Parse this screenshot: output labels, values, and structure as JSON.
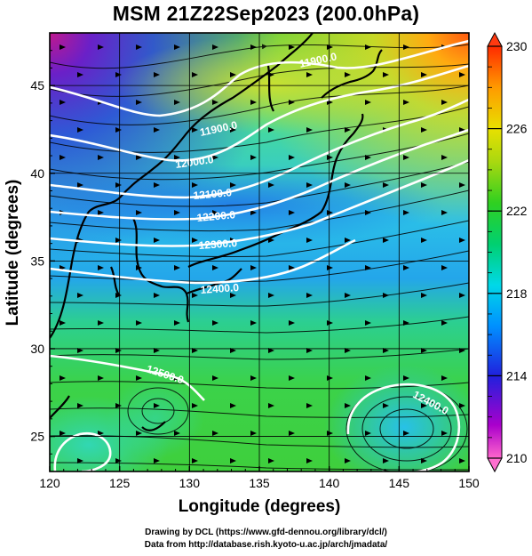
{
  "title": "MSM 21Z22Sep2023 (200.0hPa)",
  "map": {
    "xlabel": "Longitude (degrees)",
    "ylabel": "Latitude  (degrees)",
    "lon_range": [
      120,
      150
    ],
    "lat_range": [
      23,
      48
    ],
    "lon_ticks": [
      "120",
      "125",
      "130",
      "135",
      "140",
      "145",
      "150"
    ],
    "lat_ticks": [
      "25",
      "30",
      "35",
      "40",
      "45"
    ],
    "grid": true,
    "contour_labels": [
      "11900.0",
      "12000.0",
      "12100.0",
      "12200.0",
      "12300.0",
      "12400.0",
      "12500.0",
      "12400.0"
    ],
    "colormap_stops": [
      "#ff66cc",
      "#8800cc",
      "#2222dd",
      "#00aaff",
      "#00e0d0",
      "#00cc44",
      "#66dd00",
      "#dddd00",
      "#ff8800",
      "#ff2200"
    ]
  },
  "colorbar": {
    "range": [
      210,
      230
    ],
    "labels": [
      "230",
      "226",
      "222",
      "218",
      "214",
      "210"
    ]
  },
  "credits": {
    "line1": "Drawing by DCL (https://www.gfd-dennou.org/library/dcl/)",
    "line2": "Data from http://database.rish.kyoto-u.ac.jp/arch/jmadata/"
  }
}
